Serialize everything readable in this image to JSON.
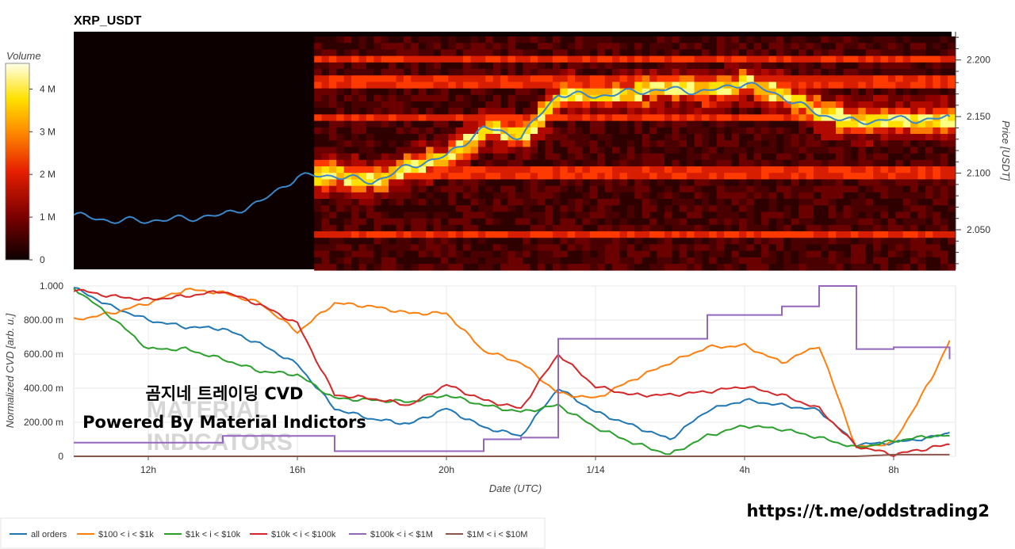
{
  "title": "XRP_USDT",
  "colors": {
    "heat_bg": "#0d0000",
    "price_line": "#1f77b4"
  },
  "heatmap": {
    "colorbar_label": "Volume",
    "colorbar_ticks": [
      "0",
      "1 M",
      "2 M",
      "3 M",
      "4 M"
    ],
    "price_label": "Price [USDT]",
    "price_ticks": [
      "2.050",
      "2.100",
      "2.150",
      "2.200"
    ]
  },
  "cvd": {
    "ylabel": "Normalized CVD [arb. u.]",
    "yticks": [
      "0",
      "200.00 m",
      "400.00 m",
      "600.00 m",
      "800.00 m",
      "1.000"
    ],
    "xlabel": "Date (UTC)",
    "xticks": [
      "12h",
      "16h",
      "20h",
      "1/14",
      "4h",
      "8h"
    ]
  },
  "overlay": {
    "line1": "곰지네 트레이딩 CVD",
    "line2": "Powered By Material Indictors",
    "faint1": "MATERIAL",
    "faint2": "INDICATORS",
    "url": "https://t.me/oddstrading2"
  },
  "legend": [
    {
      "label": "all orders",
      "color": "#1f77b4"
    },
    {
      "label": "$100 < i < $1k",
      "color": "#ff7f0e"
    },
    {
      "label": "$1k < i < $10k",
      "color": "#2ca02c"
    },
    {
      "label": "$10k < i < $100k",
      "color": "#d62728"
    },
    {
      "label": "$100k < i < $1M",
      "color": "#9467bd"
    },
    {
      "label": "$1M < i < $10M",
      "color": "#8c564b"
    }
  ],
  "chart_data": [
    {
      "type": "heatmap",
      "title": "XRP_USDT",
      "x_range": [
        "10h",
        "9h30"
      ],
      "price_line": {
        "x": [
          "10h",
          "11h",
          "12h",
          "13h",
          "14h",
          "15h",
          "16h",
          "17h",
          "18h",
          "19h",
          "20h",
          "21h",
          "22h",
          "23h",
          "1/14",
          "1h",
          "2h",
          "3h",
          "4h",
          "5h",
          "6h",
          "7h",
          "8h",
          "9h",
          "9h30"
        ],
        "y": [
          2.063,
          2.058,
          2.058,
          2.06,
          2.063,
          2.074,
          2.097,
          2.098,
          2.092,
          2.106,
          2.115,
          2.14,
          2.132,
          2.17,
          2.168,
          2.172,
          2.174,
          2.172,
          2.18,
          2.168,
          2.152,
          2.145,
          2.148,
          2.147,
          2.15
        ]
      },
      "bright_bands": [
        2.045,
        2.1,
        2.15,
        2.18,
        2.2
      ],
      "ylim": [
        2.015,
        2.225
      ],
      "colorbar": {
        "label": "Volume",
        "range": [
          0,
          4600000
        ]
      },
      "ylabel": "Price [USDT]"
    },
    {
      "type": "line",
      "xlabel": "Date (UTC)",
      "ylabel": "Normalized CVD [arb. u.]",
      "ylim": [
        0,
        1
      ],
      "x_ticks": [
        "12h",
        "16h",
        "20h",
        "1/14",
        "4h",
        "8h"
      ],
      "x": [
        "10h",
        "11h",
        "12h",
        "13h",
        "14h",
        "15h",
        "16h",
        "17h",
        "18h",
        "19h",
        "20h",
        "21h",
        "22h",
        "23h",
        "1/14",
        "1h",
        "2h",
        "3h",
        "4h",
        "5h",
        "6h",
        "7h",
        "8h",
        "9h",
        "9h30"
      ],
      "series": [
        {
          "name": "all orders",
          "values": [
            0.99,
            0.88,
            0.8,
            0.76,
            0.75,
            0.66,
            0.54,
            0.28,
            0.22,
            0.19,
            0.28,
            0.17,
            0.12,
            0.4,
            0.26,
            0.18,
            0.1,
            0.27,
            0.33,
            0.3,
            0.27,
            0.07,
            0.08,
            0.11,
            0.14
          ]
        },
        {
          "name": "$100 < i < $1k",
          "values": [
            0.8,
            0.84,
            0.9,
            0.98,
            0.96,
            0.9,
            0.73,
            0.9,
            0.88,
            0.84,
            0.84,
            0.62,
            0.55,
            0.37,
            0.34,
            0.45,
            0.55,
            0.64,
            0.65,
            0.55,
            0.65,
            0.05,
            0.08,
            0.45,
            0.68
          ]
        },
        {
          "name": "$1k < i < $10k",
          "values": [
            0.99,
            0.82,
            0.63,
            0.63,
            0.57,
            0.5,
            0.48,
            0.34,
            0.33,
            0.32,
            0.36,
            0.3,
            0.26,
            0.3,
            0.17,
            0.08,
            0.01,
            0.12,
            0.18,
            0.16,
            0.11,
            0.05,
            0.09,
            0.12,
            0.12
          ]
        },
        {
          "name": "$10k < i < $100k",
          "values": [
            0.98,
            0.94,
            0.92,
            0.94,
            0.97,
            0.89,
            0.78,
            0.36,
            0.34,
            0.3,
            0.42,
            0.33,
            0.28,
            0.6,
            0.41,
            0.36,
            0.36,
            0.38,
            0.41,
            0.36,
            0.28,
            0.06,
            0.01,
            0.05,
            0.07
          ]
        },
        {
          "name": "$100k < i < $1M",
          "values": [
            0.08,
            0.08,
            0.08,
            0.08,
            0.12,
            0.12,
            0.12,
            0.03,
            0.03,
            0.03,
            0.03,
            0.1,
            0.11,
            0.69,
            0.69,
            0.69,
            0.69,
            0.83,
            0.83,
            0.88,
            1.0,
            0.63,
            0.64,
            0.64,
            0.57
          ]
        },
        {
          "name": "$1M < i < $10M",
          "values": [
            0,
            0,
            0,
            0,
            0,
            0,
            0,
            0,
            0,
            0,
            0,
            0,
            0,
            0,
            0,
            0,
            0,
            0,
            0,
            0,
            0,
            0,
            0.01,
            0.01,
            0.01
          ]
        }
      ]
    }
  ]
}
